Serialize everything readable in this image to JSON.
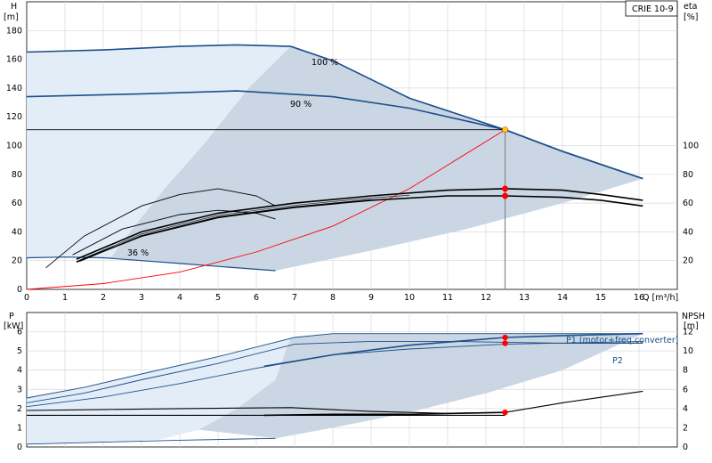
{
  "chart_data": [
    {
      "type": "line",
      "title": "CRIE 10-9",
      "ylabel": "H",
      "yunit": "[m]",
      "y2label": "eta",
      "y2unit": "[%]",
      "xlabel": "Q [m³/h]",
      "xlim": [
        0,
        17
      ],
      "ylim": [
        0,
        200
      ],
      "y2lim": [
        0,
        200
      ],
      "x_ticks": [
        0,
        1,
        2,
        3,
        4,
        5,
        6,
        7,
        8,
        9,
        10,
        11,
        12,
        13,
        14,
        15,
        16
      ],
      "y_ticks": [
        0,
        20,
        40,
        60,
        80,
        100,
        120,
        140,
        160,
        180
      ],
      "y2_ticks": [
        20,
        40,
        60,
        80,
        100
      ],
      "grid": true,
      "series": [
        {
          "name": "100 %",
          "color": "#1b4f8a",
          "x": [
            0,
            2,
            4,
            5.5,
            6.9,
            8,
            10,
            12.5,
            14,
            16.1
          ],
          "y": [
            165,
            166.5,
            169,
            170,
            169,
            159,
            133,
            111,
            96,
            77
          ]
        },
        {
          "name": "90 %",
          "color": "#1b4f8a",
          "x": [
            0,
            3,
            5.5,
            8,
            10,
            12.5,
            14,
            16.1
          ],
          "y": [
            134,
            136,
            138,
            134,
            126,
            111,
            96,
            77
          ]
        },
        {
          "name": "36 %",
          "color": "#1b4f8a",
          "x": [
            0,
            1,
            2,
            3,
            4,
            5,
            6.5
          ],
          "y": [
            22,
            22.5,
            22,
            20,
            18,
            16,
            13
          ]
        },
        {
          "name": "",
          "color": "#ff0000",
          "x": [
            0,
            2,
            4,
            6,
            8,
            10,
            12.5
          ],
          "y": [
            0,
            4,
            12,
            26,
            44,
            70,
            111
          ]
        },
        {
          "name": "",
          "color": "#000000",
          "x": [
            0,
            12.5
          ],
          "y": [
            111,
            111
          ]
        },
        {
          "name": "",
          "color": "#000000",
          "x": [
            1.3,
            3,
            5,
            7,
            9,
            11,
            12.5,
            14,
            15,
            16.1
          ],
          "y": [
            21,
            40,
            53,
            60,
            65,
            69,
            70,
            69,
            66,
            62
          ]
        },
        {
          "name": "",
          "color": "#000000",
          "x": [
            1.3,
            3,
            5,
            7,
            9,
            11,
            12.5,
            14,
            15,
            16.1
          ],
          "y": [
            19,
            37,
            50,
            57,
            62,
            65,
            65,
            64,
            62,
            58
          ]
        },
        {
          "name": "",
          "color": "#000000",
          "x": [
            0.5,
            1.5,
            3,
            4,
            5,
            6,
            6.5
          ],
          "y": [
            15,
            37,
            58,
            66,
            70,
            65,
            58
          ]
        },
        {
          "name": "",
          "color": "#000000",
          "x": [
            1.2,
            2.5,
            4,
            5,
            6,
            6.5
          ],
          "y": [
            24,
            42,
            52,
            55,
            53,
            49
          ]
        }
      ],
      "markers": [
        {
          "x": 12.5,
          "y": 111,
          "color": "#ffd000"
        },
        {
          "x": 12.5,
          "y": 70,
          "color": "#ff0000"
        },
        {
          "x": 12.5,
          "y": 65,
          "color": "#ff0000"
        }
      ],
      "labels": {
        "s100": "100 %",
        "s90": "90 %",
        "s36": "36 %"
      }
    },
    {
      "type": "line",
      "ylabel": "P",
      "yunit": "[kW]",
      "y2label": "NPSH",
      "y2unit": "[m]",
      "xlim": [
        0,
        17
      ],
      "ylim": [
        0,
        7
      ],
      "y2lim": [
        0,
        14
      ],
      "y_ticks": [
        0,
        1,
        2,
        3,
        4,
        5,
        6
      ],
      "y2_ticks": [
        0,
        2,
        4,
        6,
        8,
        10,
        12
      ],
      "grid": true,
      "series": [
        {
          "name": "P1 (motor+freq.converter)",
          "color": "#1b4f8a",
          "x": [
            0,
            1.5,
            3,
            5,
            7,
            8,
            10,
            12.5,
            14,
            16.1
          ],
          "y": [
            2.55,
            3.1,
            3.8,
            4.7,
            5.7,
            5.9,
            5.9,
            5.9,
            5.9,
            5.9
          ]
        },
        {
          "name": "P2",
          "color": "#1b4f8a",
          "x": [
            0,
            1.5,
            3,
            5,
            7,
            9,
            11,
            12.5,
            14,
            16.1
          ],
          "y": [
            2.3,
            2.8,
            3.5,
            4.35,
            5.35,
            5.5,
            5.5,
            5.45,
            5.4,
            5.4
          ]
        },
        {
          "name": "",
          "color": "#1b4f8a",
          "x": [
            0,
            2,
            4,
            6,
            8,
            10,
            12.5,
            16.1
          ],
          "y": [
            2.1,
            2.6,
            3.3,
            4.1,
            4.8,
            5.1,
            5.35,
            5.5
          ]
        },
        {
          "name": "",
          "color": "#1b4f8a",
          "x": [
            6.2,
            8,
            10,
            12.5,
            14,
            16.1
          ],
          "y": [
            4.2,
            4.8,
            5.3,
            5.7,
            5.8,
            5.9
          ]
        },
        {
          "name": "",
          "color": "#1b4f8a",
          "x": [
            0,
            2,
            4,
            6.5
          ],
          "y": [
            0.15,
            0.25,
            0.35,
            0.45
          ]
        },
        {
          "name": "",
          "color": "#000000",
          "x": [
            0,
            2,
            4,
            6.9,
            9,
            11,
            12.5,
            14,
            16.1
          ],
          "y": [
            1.9,
            1.95,
            2.0,
            2.05,
            1.85,
            1.75,
            1.8,
            2.3,
            2.9
          ]
        },
        {
          "name": "",
          "color": "#000000",
          "x": [
            6.2,
            8,
            10,
            12.5
          ],
          "y": [
            1.65,
            1.7,
            1.7,
            1.8
          ]
        },
        {
          "name": "",
          "color": "#000000",
          "x": [
            0,
            12.5
          ],
          "y": [
            1.65,
            1.65
          ]
        }
      ],
      "markers": [
        {
          "x": 12.5,
          "y": 5.7,
          "color": "#ff0000"
        },
        {
          "x": 12.5,
          "y": 5.4,
          "color": "#ff0000"
        },
        {
          "x": 12.5,
          "y": 1.8,
          "color": "#ff0000"
        }
      ]
    }
  ]
}
